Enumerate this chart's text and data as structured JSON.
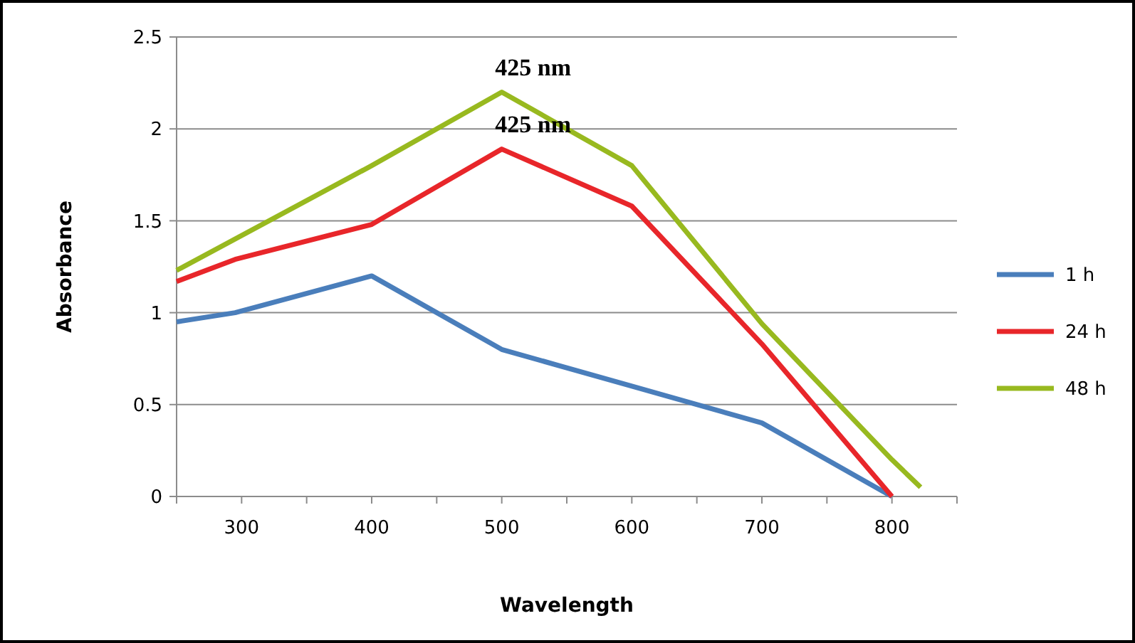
{
  "chart_data": {
    "type": "line",
    "xlabel": "Wavelength",
    "ylabel": "Absorbance",
    "xlim": [
      250,
      850
    ],
    "xticks": [
      {
        "value": 250,
        "label": null
      },
      300,
      {
        "value": 350,
        "label": null
      },
      400,
      {
        "value": 450,
        "label": null
      },
      500,
      {
        "value": 550,
        "label": null
      },
      600,
      {
        "value": 650,
        "label": null
      },
      700,
      {
        "value": 750,
        "label": null
      },
      800,
      {
        "value": 850,
        "label": null
      }
    ],
    "ylim": [
      0,
      2.5
    ],
    "yticks": [
      0,
      0.5,
      1,
      1.5,
      2,
      2.5
    ],
    "grid": "y",
    "legend": "right",
    "marker": "none",
    "line_style": "solid",
    "series": [
      {
        "name": "1 h",
        "color": "#4a7ebb",
        "x": [
          250,
          295,
          400,
          500,
          600,
          700,
          800
        ],
        "values": [
          0.95,
          1.0,
          1.2,
          0.8,
          0.6,
          0.4,
          0
        ]
      },
      {
        "name": "24 h",
        "color": "#e8262a",
        "x": [
          250,
          295,
          400,
          500,
          600,
          700,
          800
        ],
        "values": [
          1.17,
          1.29,
          1.48,
          1.89,
          1.58,
          0.83,
          0
        ]
      },
      {
        "name": "48 h",
        "color": "#98b91f",
        "x": [
          250,
          400,
          500,
          600,
          700,
          800,
          822
        ],
        "values": [
          1.23,
          1.8,
          2.2,
          1.8,
          0.94,
          0.2,
          0.05
        ]
      }
    ],
    "annotations": [
      {
        "text": "425 nm",
        "x": 500,
        "y": 2.2
      },
      {
        "text": "425 nm",
        "x": 500,
        "y": 1.89
      }
    ]
  }
}
